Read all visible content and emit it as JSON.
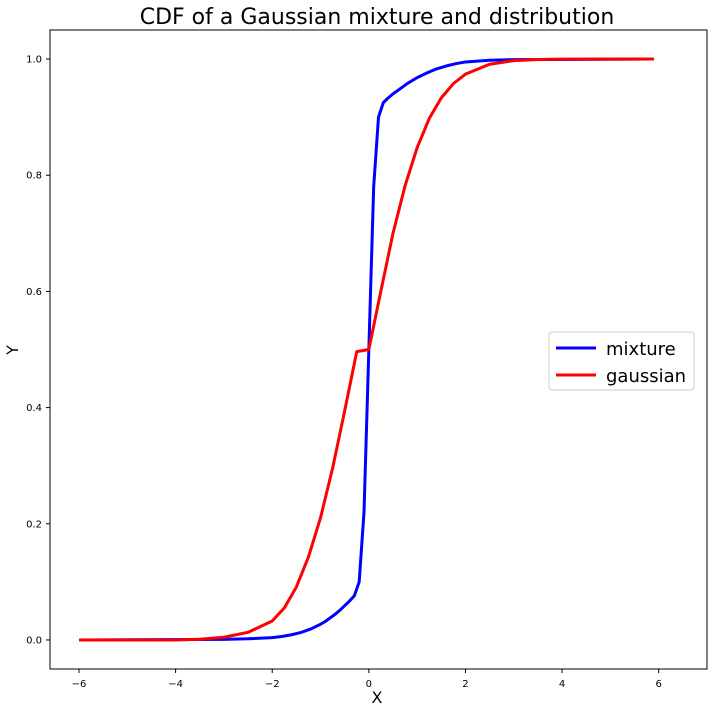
{
  "chart_data": {
    "type": "line",
    "title": "CDF of a Gaussian mixture and distribution",
    "xlabel": "X",
    "ylabel": "Y",
    "xlim": [
      -6.6,
      7.0
    ],
    "ylim": [
      -0.05,
      1.05
    ],
    "xticks": [
      -6,
      -4,
      -2,
      0,
      2,
      4,
      6
    ],
    "xtick_labels": [
      "−6",
      "−4",
      "−2",
      "0",
      "2",
      "4",
      "6"
    ],
    "yticks": [
      0.0,
      0.2,
      0.4,
      0.6,
      0.8,
      1.0
    ],
    "ytick_labels": [
      "0.0",
      "0.2",
      "0.4",
      "0.6",
      "0.8",
      "1.0"
    ],
    "grid": false,
    "legend_position": "center-right",
    "series": [
      {
        "name": "mixture",
        "color": "#0000ff",
        "x": [
          -6.0,
          -3.0,
          -2.5,
          -2.0,
          -1.8,
          -1.6,
          -1.4,
          -1.2,
          -1.0,
          -0.9,
          -0.8,
          -0.7,
          -0.6,
          -0.5,
          -0.4,
          -0.3,
          -0.2,
          -0.1,
          0.0,
          0.1,
          0.2,
          0.3,
          0.4,
          0.5,
          0.6,
          0.8,
          1.0,
          1.2,
          1.4,
          1.6,
          1.8,
          2.0,
          2.5,
          3.0,
          5.9
        ],
        "y": [
          0.0,
          0.001,
          0.002,
          0.004,
          0.006,
          0.009,
          0.013,
          0.019,
          0.027,
          0.032,
          0.038,
          0.044,
          0.051,
          0.059,
          0.067,
          0.076,
          0.1,
          0.22,
          0.5,
          0.78,
          0.9,
          0.925,
          0.933,
          0.94,
          0.946,
          0.958,
          0.968,
          0.976,
          0.983,
          0.988,
          0.992,
          0.995,
          0.998,
          0.999,
          1.0
        ]
      },
      {
        "name": "gaussian",
        "color": "#ff0000",
        "x": [
          -6.0,
          -4.0,
          -3.5,
          -3.0,
          -2.5,
          -2.0,
          -1.75,
          -1.5,
          -1.25,
          -1.0,
          -0.75,
          -0.5,
          -0.25,
          0.0,
          0.25,
          0.5,
          0.75,
          1.0,
          1.25,
          1.5,
          1.75,
          2.0,
          2.5,
          3.0,
          3.5,
          4.0,
          5.9
        ],
        "y": [
          0.0,
          0.0,
          0.0013,
          0.0047,
          0.0131,
          0.0327,
          0.0551,
          0.0912,
          0.1428,
          0.2104,
          0.2957,
          0.3944,
          0.4964,
          0.5,
          0.6011,
          0.7,
          0.7819,
          0.8475,
          0.8976,
          0.9332,
          0.9577,
          0.974,
          0.991,
          0.9973,
          0.9993,
          0.9999,
          1.0
        ]
      }
    ]
  }
}
